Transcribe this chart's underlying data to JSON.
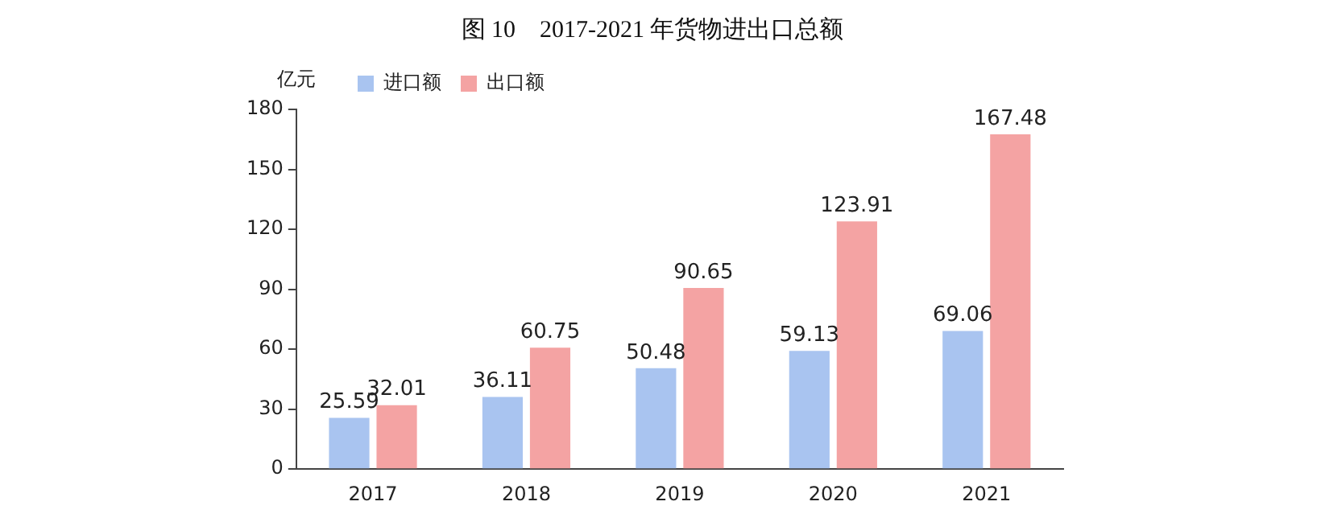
{
  "chart_data": {
    "type": "bar",
    "title": "图 10　2017-2021 年货物进出口总额",
    "ylabel": "亿元",
    "categories": [
      "2017",
      "2018",
      "2019",
      "2020",
      "2021"
    ],
    "series": [
      {
        "name": "进口额",
        "color": "#a9c4f0",
        "values": [
          25.59,
          36.11,
          50.48,
          59.13,
          69.06
        ]
      },
      {
        "name": "出口额",
        "color": "#f4a3a3",
        "values": [
          32.01,
          60.75,
          90.65,
          123.91,
          167.48
        ]
      }
    ],
    "ylim": [
      0,
      180
    ],
    "yticks": [
      0,
      30,
      60,
      90,
      120,
      150,
      180
    ],
    "grid": false,
    "legend": "top left",
    "data_labels": true
  }
}
